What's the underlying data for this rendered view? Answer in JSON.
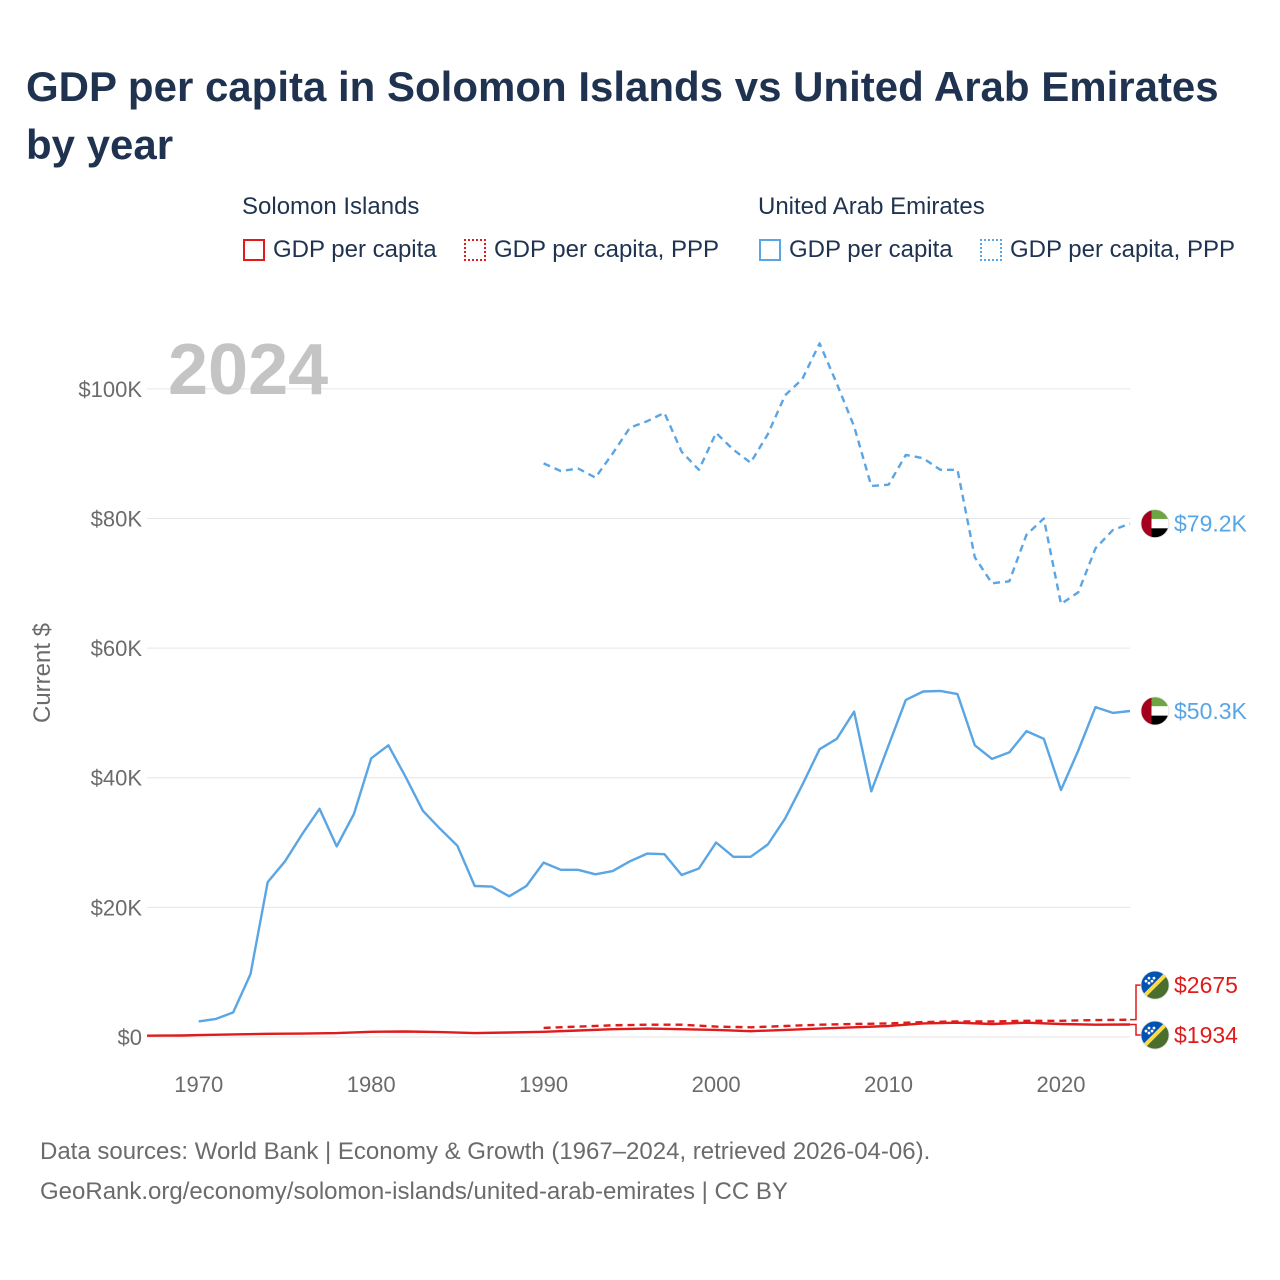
{
  "title": "GDP per capita in Solomon Islands vs United Arab Emirates by year",
  "legend": {
    "groups": [
      {
        "country": "Solomon Islands",
        "color": "#e01b1b",
        "items": [
          {
            "label": "GDP per capita",
            "style": "solid"
          },
          {
            "label": "GDP per capita, PPP",
            "style": "dotted"
          }
        ]
      },
      {
        "country": "United Arab Emirates",
        "color": "#5aa5e4",
        "items": [
          {
            "label": "GDP per capita",
            "style": "solid"
          },
          {
            "label": "GDP per capita, PPP",
            "style": "dotted"
          }
        ]
      }
    ]
  },
  "footer": {
    "line1": "Data sources: World Bank | Economy & Growth (1967–2024, retrieved 2026-04-06).",
    "line2": "GeoRank.org/economy/solomon-islands/united-arab-emirates | CC BY"
  },
  "chart_data": {
    "type": "line",
    "title": "GDP per capita in Solomon Islands vs United Arab Emirates by year",
    "year_label": "2024",
    "xlabel": "",
    "ylabel": "Current $",
    "xlim": [
      1967,
      2024
    ],
    "ylim": [
      0,
      110000
    ],
    "x_ticks": [
      1970,
      1980,
      1990,
      2000,
      2010,
      2020
    ],
    "y_ticks": [
      {
        "value": 0,
        "label": "$0"
      },
      {
        "value": 20000,
        "label": "$20K"
      },
      {
        "value": 40000,
        "label": "$40K"
      },
      {
        "value": 60000,
        "label": "$60K"
      },
      {
        "value": 80000,
        "label": "$80K"
      },
      {
        "value": 100000,
        "label": "$100K"
      }
    ],
    "grid": true,
    "series": [
      {
        "name": "United Arab Emirates — GDP per capita, PPP",
        "country": "United Arab Emirates",
        "color": "#5aa5e4",
        "dash": "dashed",
        "end_label": "$79.2K",
        "flag": "uae",
        "label_value": 79200,
        "x": [
          1990,
          1991,
          1992,
          1993,
          1994,
          1995,
          1996,
          1997,
          1998,
          1999,
          2000,
          2001,
          2002,
          2003,
          2004,
          2005,
          2006,
          2007,
          2008,
          2009,
          2010,
          2011,
          2012,
          2013,
          2014,
          2015,
          2016,
          2017,
          2018,
          2019,
          2020,
          2021,
          2022,
          2023,
          2024
        ],
        "values": [
          88500,
          87300,
          87700,
          86300,
          90000,
          94000,
          95000,
          96300,
          90300,
          87500,
          93200,
          90600,
          88600,
          93000,
          99000,
          101500,
          107000,
          100800,
          94200,
          85000,
          85200,
          89800,
          89300,
          87500,
          87500,
          74000,
          70000,
          70300,
          77500,
          80000,
          66800,
          68600,
          75400,
          78200,
          79200
        ]
      },
      {
        "name": "United Arab Emirates — GDP per capita",
        "country": "United Arab Emirates",
        "color": "#5aa5e4",
        "dash": "solid",
        "end_label": "$50.3K",
        "flag": "uae",
        "label_value": 50300,
        "x": [
          1970,
          1971,
          1972,
          1973,
          1974,
          1975,
          1976,
          1977,
          1978,
          1979,
          1980,
          1981,
          1982,
          1983,
          1984,
          1985,
          1986,
          1987,
          1988,
          1989,
          1990,
          1991,
          1992,
          1993,
          1994,
          1995,
          1996,
          1997,
          1998,
          1999,
          2000,
          2001,
          2002,
          2003,
          2004,
          2005,
          2006,
          2007,
          2008,
          2009,
          2010,
          2011,
          2012,
          2013,
          2014,
          2015,
          2016,
          2017,
          2018,
          2019,
          2020,
          2021,
          2022,
          2023,
          2024
        ],
        "values": [
          2400,
          2800,
          3800,
          9700,
          23900,
          27100,
          31300,
          35200,
          29400,
          34400,
          43000,
          45000,
          40100,
          34900,
          32100,
          29500,
          23300,
          23200,
          21700,
          23300,
          26900,
          25800,
          25800,
          25100,
          25600,
          27100,
          28300,
          28200,
          25000,
          26000,
          30000,
          27800,
          27800,
          29700,
          33700,
          38900,
          44400,
          46000,
          50200,
          37900,
          45000,
          52000,
          53300,
          53400,
          52900,
          45000,
          42900,
          43900,
          47200,
          46000,
          38100,
          44200,
          50900,
          50000,
          50300
        ]
      },
      {
        "name": "Solomon Islands — GDP per capita, PPP",
        "country": "Solomon Islands",
        "color": "#e01b1b",
        "dash": "dashed",
        "end_label": "$2675",
        "flag": "sb",
        "label_value": 8000,
        "x": [
          1990,
          1992,
          1994,
          1996,
          1998,
          2000,
          2002,
          2004,
          2006,
          2008,
          2010,
          2012,
          2014,
          2016,
          2018,
          2020,
          2022,
          2024
        ],
        "values": [
          1400,
          1600,
          1800,
          1900,
          1900,
          1600,
          1500,
          1700,
          1900,
          2000,
          2100,
          2300,
          2400,
          2400,
          2500,
          2500,
          2600,
          2675
        ]
      },
      {
        "name": "Solomon Islands — GDP per capita",
        "country": "Solomon Islands",
        "color": "#e01b1b",
        "dash": "solid",
        "end_label": "$1934",
        "flag": "sb",
        "label_value": 300,
        "x": [
          1967,
          1968,
          1969,
          1970,
          1972,
          1974,
          1976,
          1978,
          1980,
          1982,
          1984,
          1986,
          1988,
          1990,
          1992,
          1994,
          1996,
          1998,
          2000,
          2002,
          2004,
          2006,
          2008,
          2010,
          2012,
          2014,
          2016,
          2018,
          2020,
          2022,
          2024
        ],
        "values": [
          200,
          210,
          230,
          300,
          400,
          500,
          520,
          600,
          800,
          850,
          750,
          600,
          700,
          800,
          1000,
          1200,
          1300,
          1200,
          1100,
          900,
          1100,
          1300,
          1500,
          1700,
          2100,
          2200,
          2000,
          2200,
          2000,
          1900,
          1934
        ]
      }
    ]
  }
}
